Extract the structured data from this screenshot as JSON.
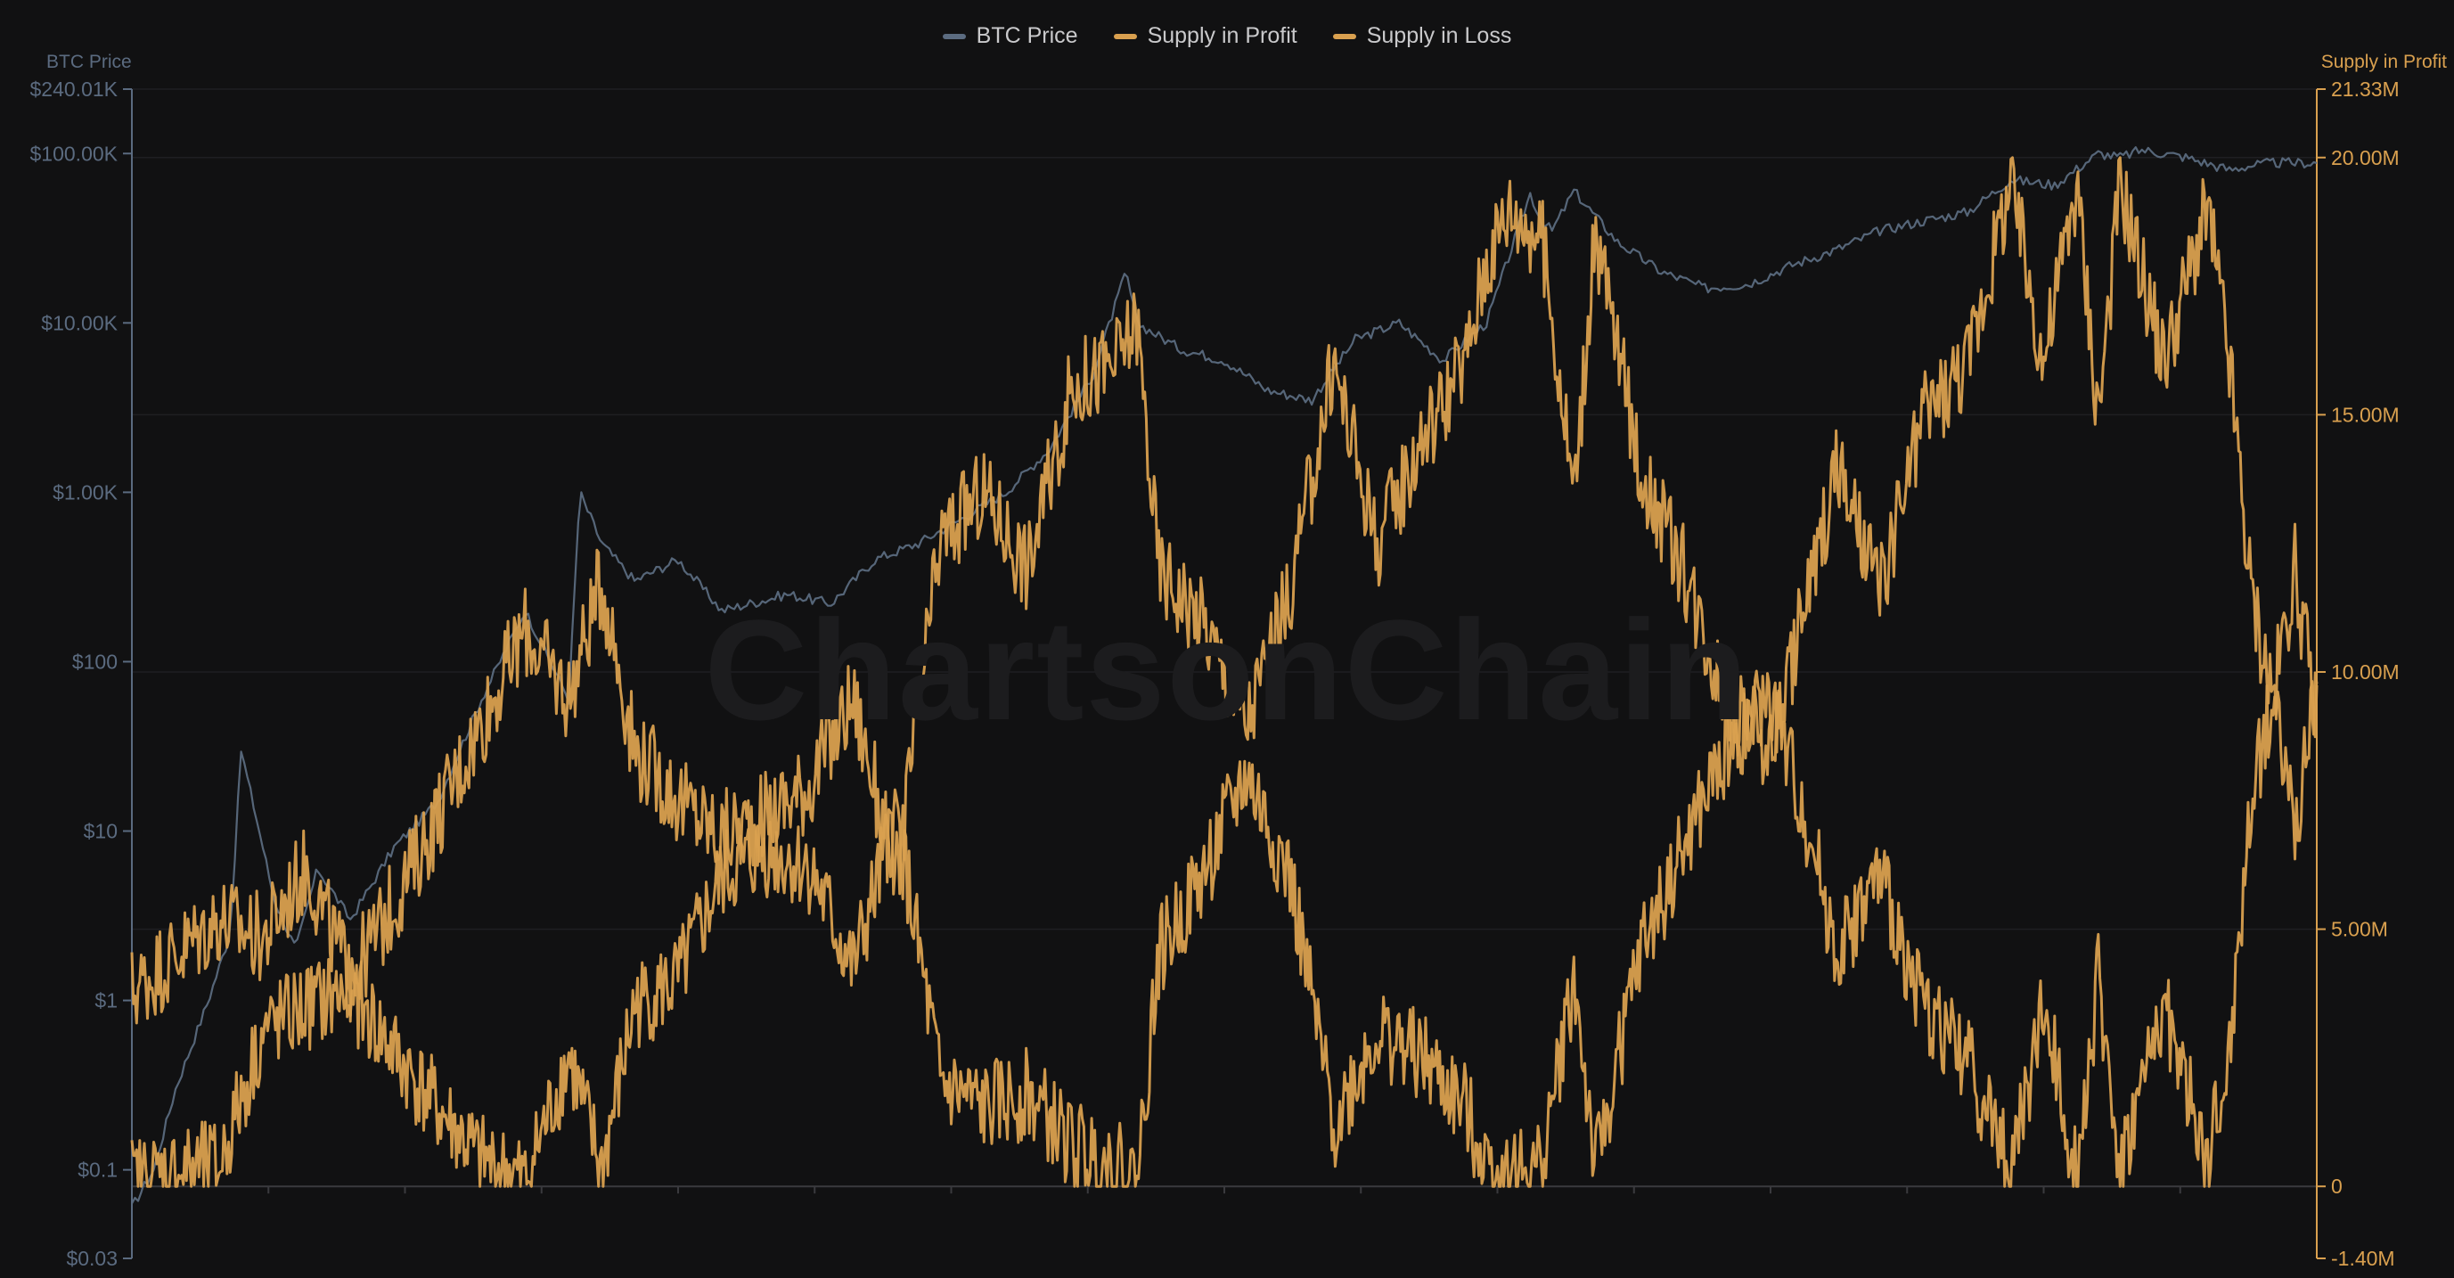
{
  "watermark": "ChartsonChain",
  "legend": [
    {
      "label": "BTC Price",
      "color": "#5b6b80"
    },
    {
      "label": "Supply in Profit",
      "color": "#d9a04f"
    },
    {
      "label": "Supply in Loss",
      "color": "#d9a04f"
    }
  ],
  "chart_data": {
    "type": "line",
    "left_axis": {
      "title": "BTC Price",
      "scale": "log",
      "range": [
        0.03,
        240010
      ],
      "ticks": [
        {
          "value": 240010,
          "label": "$240.01K"
        },
        {
          "value": 100000,
          "label": "$100.00K"
        },
        {
          "value": 10000,
          "label": "$10.00K"
        },
        {
          "value": 1000,
          "label": "$1.00K"
        },
        {
          "value": 100,
          "label": "$100"
        },
        {
          "value": 10,
          "label": "$10"
        },
        {
          "value": 1,
          "label": "$1"
        },
        {
          "value": 0.1,
          "label": "$0.1"
        },
        {
          "value": 0.03,
          "label": "$0.03"
        }
      ]
    },
    "right_axis": {
      "title": "Supply in Profit",
      "scale": "linear",
      "range": [
        -1400000,
        21330000
      ],
      "ticks": [
        {
          "value": 21330000,
          "label": "21.33M"
        },
        {
          "value": 20000000,
          "label": "20.00M"
        },
        {
          "value": 15000000,
          "label": "15.00M"
        },
        {
          "value": 10000000,
          "label": "10.00M"
        },
        {
          "value": 5000000,
          "label": "5.00M"
        },
        {
          "value": 0,
          "label": "0"
        },
        {
          "value": -1400000,
          "label": "-1.40M"
        }
      ]
    },
    "series": [
      {
        "name": "BTC Price",
        "color": "#5b6b80",
        "x": [
          0,
          0.01,
          0.02,
          0.035,
          0.045,
          0.05,
          0.06,
          0.065,
          0.075,
          0.085,
          0.1,
          0.12,
          0.14,
          0.16,
          0.18,
          0.2,
          0.205,
          0.215,
          0.23,
          0.25,
          0.27,
          0.3,
          0.32,
          0.34,
          0.36,
          0.38,
          0.4,
          0.42,
          0.44,
          0.455,
          0.46,
          0.48,
          0.5,
          0.52,
          0.54,
          0.56,
          0.58,
          0.6,
          0.62,
          0.64,
          0.645,
          0.65,
          0.66,
          0.68,
          0.7,
          0.71,
          0.72,
          0.74,
          0.76,
          0.78,
          0.8,
          0.82,
          0.84,
          0.86,
          0.88,
          0.9,
          0.91,
          0.92,
          0.94,
          0.96,
          0.97,
          0.98,
          1.0
        ],
        "values": [
          0.06,
          0.1,
          0.3,
          1,
          2.5,
          30,
          8,
          4,
          2,
          6,
          3,
          8,
          15,
          60,
          200,
          60,
          1000,
          500,
          300,
          400,
          200,
          250,
          220,
          400,
          500,
          700,
          1000,
          1800,
          5000,
          20000,
          10000,
          7000,
          6000,
          4000,
          3500,
          8000,
          10000,
          6000,
          10000,
          58000,
          40000,
          35000,
          60000,
          30000,
          20000,
          18000,
          16000,
          17000,
          22000,
          27000,
          35000,
          40000,
          45000,
          70000,
          65000,
          100000,
          95000,
          105000,
          95000,
          80000,
          85000,
          88000,
          88000
        ]
      },
      {
        "name": "Supply in Profit",
        "color": "#d9a04f",
        "x": [
          0,
          0.02,
          0.04,
          0.06,
          0.08,
          0.1,
          0.12,
          0.14,
          0.16,
          0.18,
          0.2,
          0.215,
          0.23,
          0.25,
          0.27,
          0.29,
          0.31,
          0.33,
          0.35,
          0.37,
          0.39,
          0.41,
          0.43,
          0.45,
          0.46,
          0.47,
          0.49,
          0.51,
          0.53,
          0.55,
          0.57,
          0.59,
          0.61,
          0.62,
          0.63,
          0.645,
          0.66,
          0.67,
          0.69,
          0.71,
          0.73,
          0.75,
          0.77,
          0.78,
          0.8,
          0.82,
          0.84,
          0.86,
          0.875,
          0.89,
          0.9,
          0.91,
          0.93,
          0.95,
          0.96,
          0.97,
          0.98,
          0.99,
          1.0
        ],
        "values": [
          3800000,
          4500000,
          5200000,
          4800000,
          6200000,
          4000000,
          5500000,
          7200000,
          9000000,
          10800000,
          9500000,
          11800000,
          8500000,
          7500000,
          6800000,
          7200000,
          7800000,
          9500000,
          6000000,
          12500000,
          13500000,
          12000000,
          15500000,
          16000000,
          16800000,
          12000000,
          11000000,
          9000000,
          11500000,
          16000000,
          12500000,
          14500000,
          16000000,
          18000000,
          19000000,
          18500000,
          13500000,
          18500000,
          14000000,
          12000000,
          9500000,
          8500000,
          12000000,
          14000000,
          11500000,
          15000000,
          16000000,
          19500000,
          16000000,
          19500000,
          15000000,
          19500000,
          16000000,
          19000000,
          16000000,
          11500000,
          9500000,
          12000000,
          9000000
        ]
      },
      {
        "name": "Supply in Loss",
        "color": "#d9a04f",
        "x": [
          0,
          0.02,
          0.04,
          0.06,
          0.08,
          0.1,
          0.12,
          0.14,
          0.16,
          0.18,
          0.2,
          0.215,
          0.23,
          0.25,
          0.27,
          0.29,
          0.31,
          0.33,
          0.35,
          0.37,
          0.39,
          0.41,
          0.43,
          0.45,
          0.46,
          0.47,
          0.49,
          0.51,
          0.53,
          0.55,
          0.57,
          0.59,
          0.61,
          0.62,
          0.63,
          0.645,
          0.66,
          0.67,
          0.69,
          0.71,
          0.73,
          0.75,
          0.77,
          0.78,
          0.8,
          0.82,
          0.84,
          0.86,
          0.875,
          0.89,
          0.9,
          0.91,
          0.93,
          0.95,
          0.96,
          0.97,
          0.98,
          0.99,
          1.0
        ],
        "values": [
          100000,
          300000,
          400000,
          3000000,
          3500000,
          3800000,
          2600000,
          1500000,
          500000,
          100000,
          2500000,
          300000,
          3500000,
          4000000,
          6000000,
          6500000,
          6200000,
          4200000,
          7200000,
          2000000,
          1500000,
          1800000,
          800000,
          400000,
          100000,
          4500000,
          6000000,
          8000000,
          6000000,
          1200000,
          3000000,
          2500000,
          1500000,
          500000,
          200000,
          400000,
          4000000,
          300000,
          4500000,
          6500000,
          8500000,
          9500000,
          6500000,
          4500000,
          6000000,
          3500000,
          2500000,
          300000,
          3500000,
          300000,
          4000000,
          300000,
          3500000,
          400000,
          2500000,
          7500000,
          9500000,
          7000000,
          9500000
        ]
      }
    ]
  }
}
